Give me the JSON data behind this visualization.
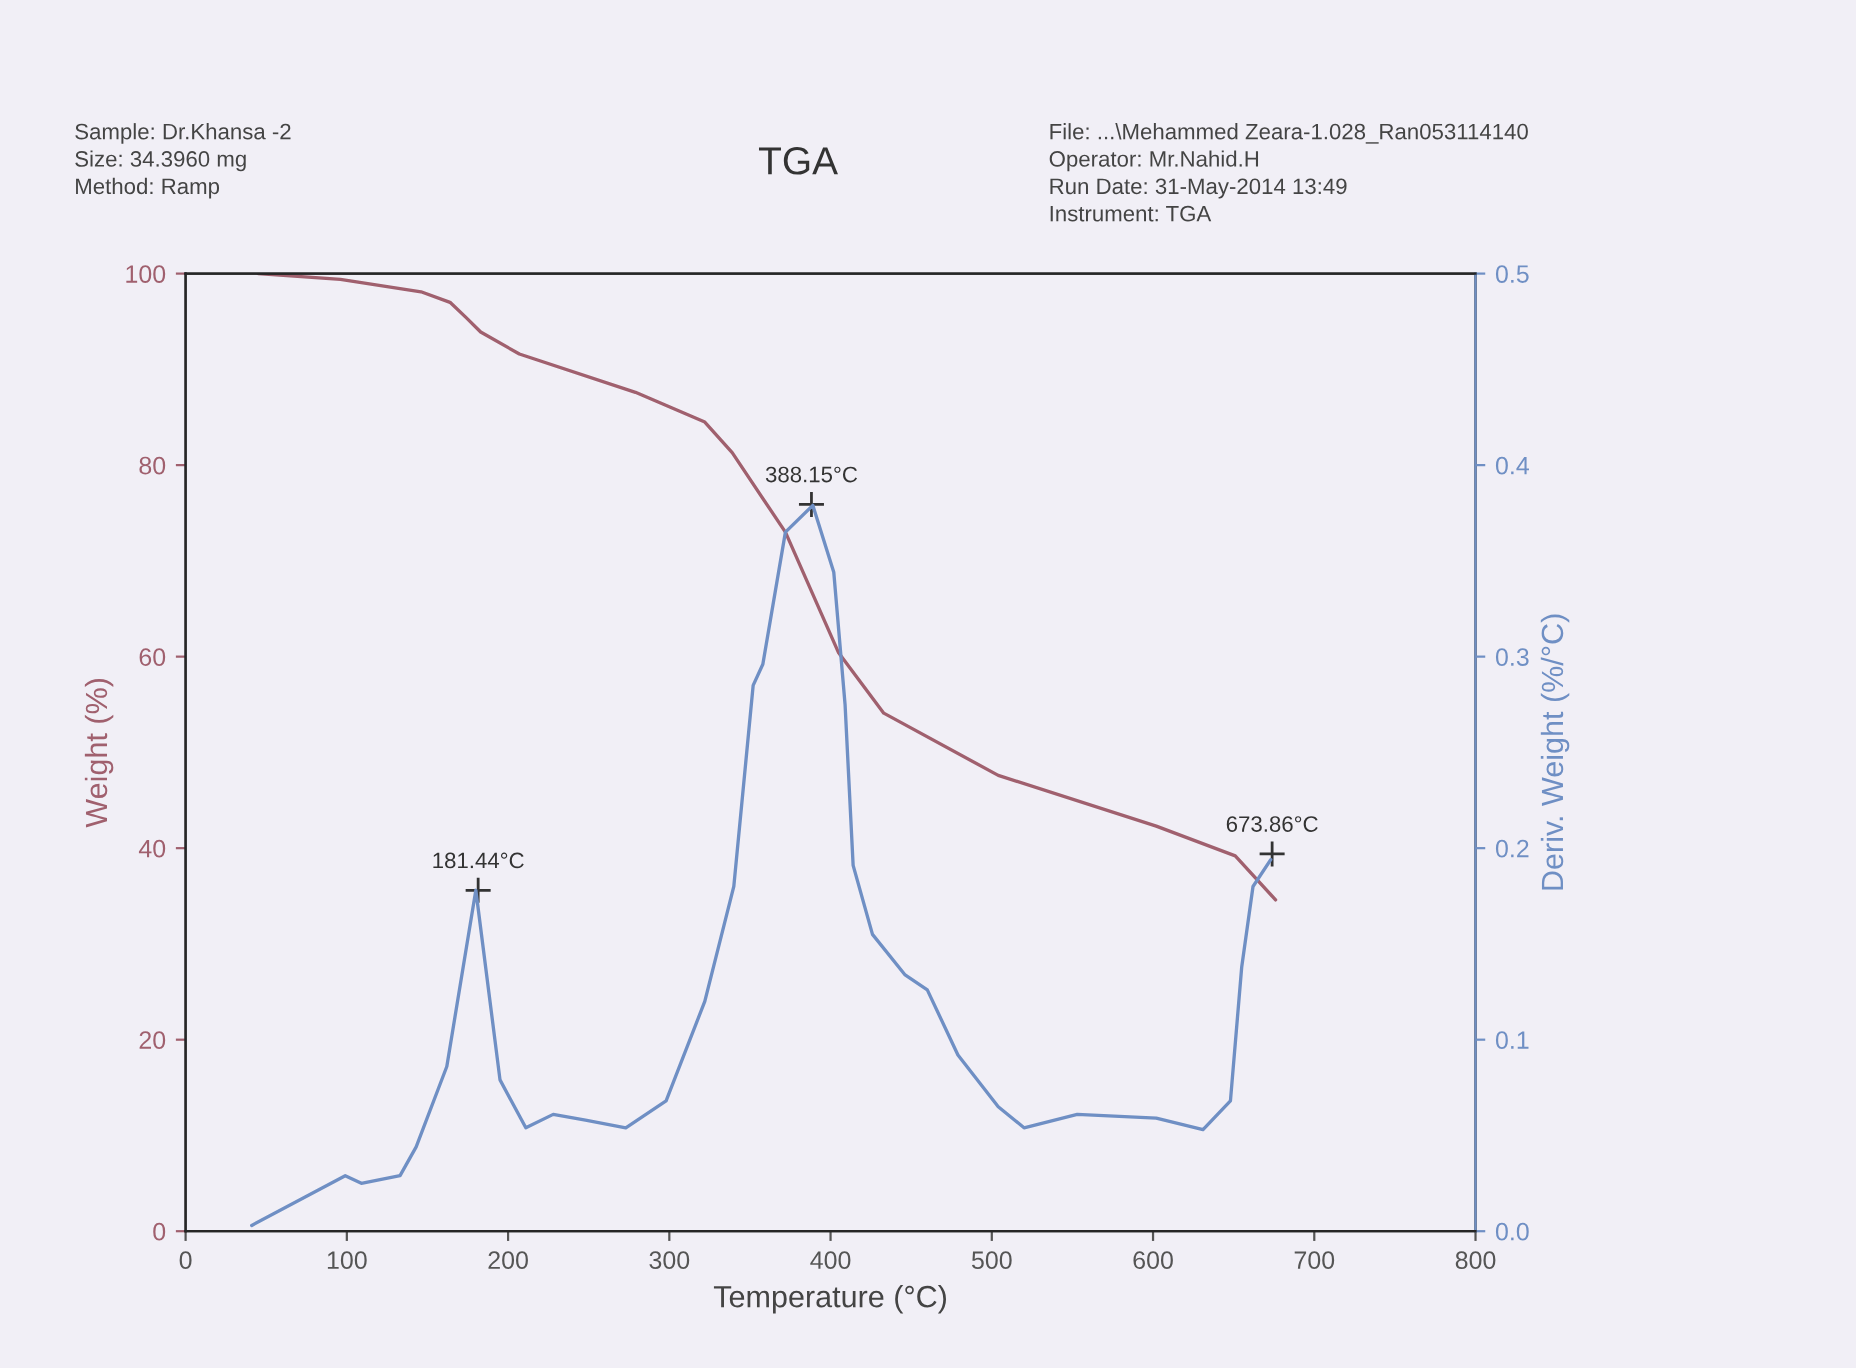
{
  "chart_data": {
    "type": "line",
    "title": "TGA",
    "xlabel": "Temperature (°C)",
    "ylabel": "Weight (%)",
    "y2label": "Deriv. Weight (%/°C)",
    "xlim": [
      0,
      800
    ],
    "xticks": [
      0,
      100,
      200,
      300,
      400,
      500,
      600,
      700,
      800
    ],
    "ylim": [
      0,
      100
    ],
    "yticks": [
      0,
      20,
      40,
      60,
      80,
      100
    ],
    "y2lim": [
      0,
      0.5
    ],
    "y2ticks": [
      {
        "value": 0,
        "label": "0.0"
      },
      0.1,
      0.2,
      0.3,
      0.4,
      0.5
    ],
    "grid": false,
    "legend": false,
    "series": [
      {
        "color": "#a0606e",
        "x": [
          45,
          96,
          146,
          164,
          174,
          183,
          207,
          279,
          322,
          339,
          372,
          405,
          433,
          504,
          602,
          651,
          676
        ],
        "values": [
          100,
          99.4,
          98.1,
          97,
          95.4,
          93.9,
          91.6,
          87.6,
          84.5,
          81.3,
          73.0,
          60.4,
          54.1,
          47.6,
          42.3,
          39.2,
          34.6
        ]
      },
      {
        "color": "#6f8fc4",
        "axis": "y2",
        "x": [
          41,
          99,
          109,
          133,
          143,
          162,
          180,
          195,
          211,
          228,
          248,
          273,
          298,
          322,
          340,
          352,
          358,
          372,
          389,
          402,
          409,
          414,
          426,
          446,
          460,
          479,
          504,
          520,
          553,
          602,
          631,
          648,
          655,
          662,
          673
        ],
        "values": [
          0.003,
          0.029,
          0.025,
          0.029,
          0.044,
          0.086,
          0.178,
          0.079,
          0.054,
          0.061,
          0.058,
          0.054,
          0.068,
          0.12,
          0.18,
          0.285,
          0.296,
          0.365,
          0.379,
          0.344,
          0.275,
          0.191,
          0.155,
          0.134,
          0.126,
          0.092,
          0.065,
          0.054,
          0.061,
          0.059,
          0.053,
          0.068,
          0.138,
          0.18,
          0.194
        ]
      }
    ],
    "annotations": [
      "Sample: Dr.Khansa -2",
      "Size: 34.3960 mg",
      "Method: Ramp",
      "File: ...\\Mehammed Zeara-1.028_Ran053114140",
      "Operator: Mr.Nahid.H",
      "Run Date: 31-May-2014 13:49",
      "Instrument: TGA",
      {
        "text": "181.44°C",
        "x": 181.44,
        "y": 35.6
      },
      {
        "text": "388.15°C",
        "x": 388.15,
        "y": 75.9
      },
      {
        "text": "673.86°C",
        "x": 673.86,
        "y": 39.4
      }
    ]
  }
}
